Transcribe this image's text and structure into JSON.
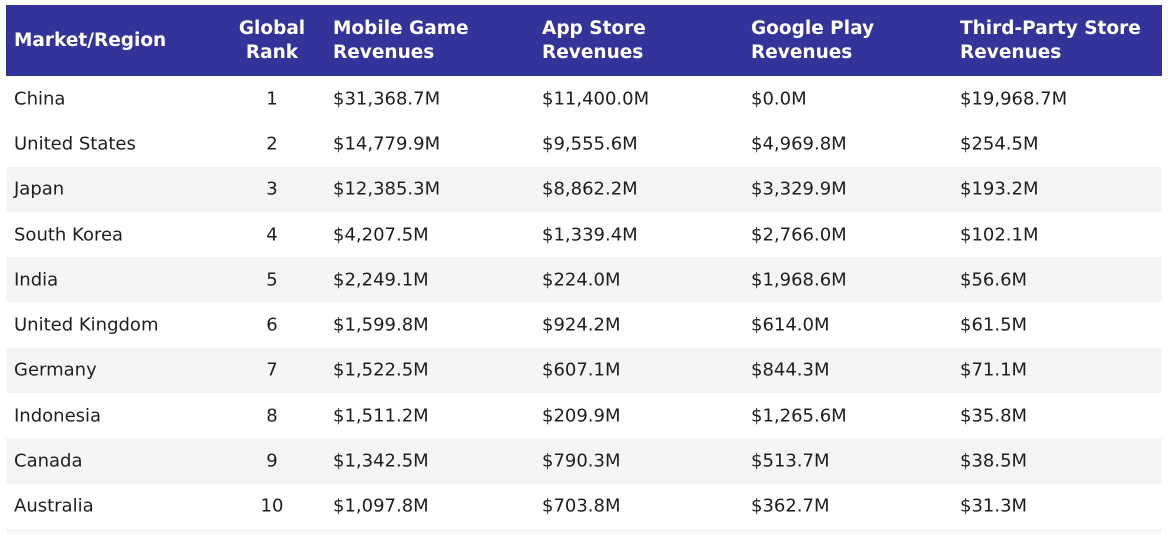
{
  "chart_data": {
    "type": "table",
    "columns": [
      "Market/Region",
      "Global Rank",
      "Mobile Game Revenues",
      "App Store Revenues",
      "Google Play Revenues",
      "Third-Party Store Revenues"
    ],
    "rows": [
      [
        "China",
        "1",
        "$31,368.7M",
        "$11,400.0M",
        "$0.0M",
        "$19,968.7M"
      ],
      [
        "United States",
        "2",
        "$14,779.9M",
        "$9,555.6M",
        "$4,969.8M",
        "$254.5M"
      ],
      [
        "Japan",
        "3",
        "$12,385.3M",
        "$8,862.2M",
        "$3,329.9M",
        "$193.2M"
      ],
      [
        "South Korea",
        "4",
        "$4,207.5M",
        "$1,339.4M",
        "$2,766.0M",
        "$102.1M"
      ],
      [
        "India",
        "5",
        "$2,249.1M",
        "$224.0M",
        "$1,968.6M",
        "$56.6M"
      ],
      [
        "United Kingdom",
        "6",
        "$1,599.8M",
        "$924.2M",
        "$614.0M",
        "$61.5M"
      ],
      [
        "Germany",
        "7",
        "$1,522.5M",
        "$607.1M",
        "$844.3M",
        "$71.1M"
      ],
      [
        "Indonesia",
        "8",
        "$1,511.2M",
        "$209.9M",
        "$1,265.6M",
        "$35.8M"
      ],
      [
        "Canada",
        "9",
        "$1,342.5M",
        "$790.3M",
        "$513.7M",
        "$38.5M"
      ],
      [
        "Australia",
        "10",
        "$1,097.8M",
        "$703.8M",
        "$362.7M",
        "$31.3M"
      ]
    ]
  },
  "colors": {
    "header_bg": "#333399",
    "header_text": "#ffffff",
    "stripe": "#f5f5f5"
  }
}
